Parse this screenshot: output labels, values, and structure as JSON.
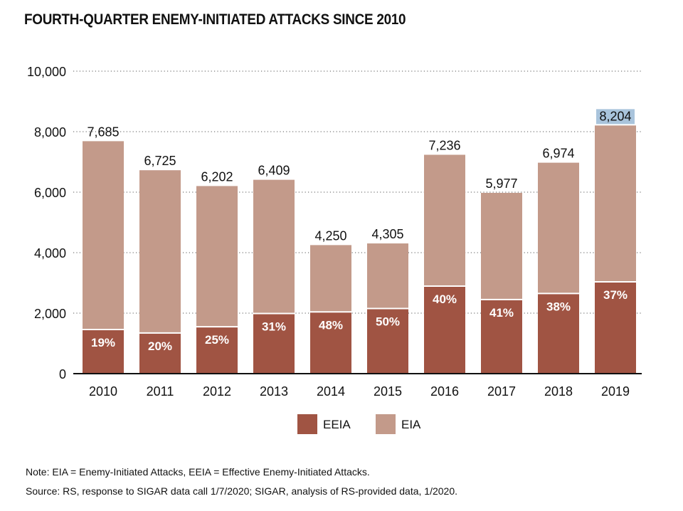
{
  "chart_data": {
    "type": "bar",
    "stacked": true,
    "title": "FOURTH-QUARTER ENEMY-INITIATED ATTACKS SINCE 2010",
    "categories": [
      "2010",
      "2011",
      "2012",
      "2013",
      "2014",
      "2015",
      "2016",
      "2017",
      "2018",
      "2019"
    ],
    "totals": [
      7685,
      6725,
      6202,
      6409,
      4250,
      4305,
      7236,
      5977,
      6974,
      8204
    ],
    "total_labels": [
      "7,685",
      "6,725",
      "6,202",
      "6,409",
      "4,250",
      "4,305",
      "7,236",
      "5,977",
      "6,974",
      "8,204"
    ],
    "eeia_share_labels": [
      "19%",
      "20%",
      "25%",
      "31%",
      "48%",
      "50%",
      "40%",
      "41%",
      "38%",
      "37%"
    ],
    "series": [
      {
        "name": "EEIA",
        "values": [
          1460,
          1345,
          1550,
          1987,
          2040,
          2152,
          2894,
          2451,
          2650,
          3035
        ]
      },
      {
        "name": "EIA",
        "values": [
          6225,
          5380,
          4652,
          4422,
          2210,
          2153,
          4342,
          3526,
          4324,
          5169
        ]
      }
    ],
    "ylim": [
      0,
      10000
    ],
    "y_ticks": [
      0,
      2000,
      4000,
      6000,
      8000,
      10000
    ],
    "y_tick_labels": [
      "0",
      "2,000",
      "4,000",
      "6,000",
      "8,000",
      "10,000"
    ],
    "grid": true,
    "legend_position": "bottom"
  },
  "colors": {
    "eeia": "#a05443",
    "eia": "#c39a8a",
    "highlight": "#a9c4dc"
  },
  "note": "Note: EIA = Enemy-Initiated Attacks, EEIA = Effective Enemy-Initiated Attacks.",
  "source": "Source: RS, response to SIGAR data call 1/7/2020; SIGAR, analysis of RS-provided data, 1/2020."
}
